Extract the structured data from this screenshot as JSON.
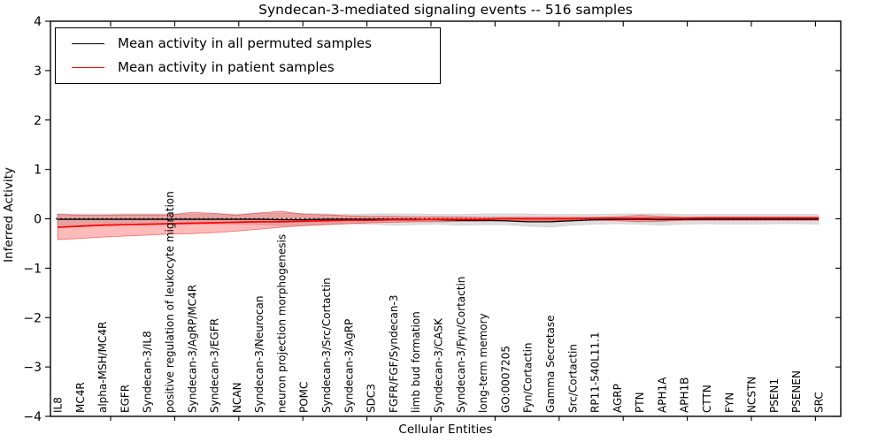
{
  "chart_data": {
    "type": "line",
    "title": "Syndecan-3-mediated signaling events -- 516 samples",
    "xlabel": "Cellular Entities",
    "ylabel": "Inferred Activity",
    "ylim": [
      -4,
      4
    ],
    "grid": false,
    "legend_position": "upper-left",
    "yticks": [
      {
        "v": 4,
        "label": "4"
      },
      {
        "v": 3,
        "label": "3"
      },
      {
        "v": 2,
        "label": "2"
      },
      {
        "v": 1,
        "label": "1"
      },
      {
        "v": 0,
        "label": "0"
      },
      {
        "v": -1,
        "label": "−1"
      },
      {
        "v": -2,
        "label": "−2"
      },
      {
        "v": -3,
        "label": "−3"
      },
      {
        "v": -4,
        "label": "−4"
      }
    ],
    "categories": [
      "IL8",
      "MC4R",
      "alpha-MSH/MC4R",
      "EGFR",
      "Syndecan-3/IL8",
      "positive regulation of leukocyte migration",
      "Syndecan-3/AgRP/MC4R",
      "Syndecan-3/EGFR",
      "NCAN",
      "Syndecan-3/Neurocan",
      "neuron projection morphogenesis",
      "POMC",
      "Syndecan-3/Src/Cortactin",
      "Syndecan-3/AgRP",
      "SDC3",
      "FGFR/FGF/Syndecan-3",
      "limb bud formation",
      "Syndecan-3/CASK",
      "Syndecan-3/Fyn/Cortactin",
      "long-term memory",
      "GO:0007205",
      "Fyn/Cortactin",
      "Gamma Secretase",
      "Src/Cortactin",
      "RP11-540L11.1",
      "AGRP",
      "PTN",
      "APH1A",
      "APH1B",
      "CTTN",
      "FYN",
      "NCSTN",
      "PSEN1",
      "PSENEN",
      "SRC"
    ],
    "series": [
      {
        "name": "Mean activity in all permuted samples",
        "color": "#000000",
        "width": 1.3,
        "values": [
          -0.01,
          -0.01,
          -0.01,
          -0.01,
          -0.01,
          -0.01,
          -0.01,
          -0.01,
          -0.01,
          -0.01,
          -0.02,
          -0.02,
          -0.01,
          -0.01,
          -0.01,
          -0.01,
          -0.01,
          -0.02,
          -0.03,
          -0.03,
          -0.04,
          -0.06,
          -0.06,
          -0.04,
          -0.02,
          -0.01,
          -0.01,
          -0.02,
          -0.01,
          -0.01,
          -0.01,
          -0.01,
          -0.01,
          -0.01,
          -0.01
        ]
      },
      {
        "name": "Mean activity in patient samples",
        "color": "#ff0000",
        "width": 1.7,
        "values": [
          -0.17,
          -0.15,
          -0.13,
          -0.12,
          -0.11,
          -0.1,
          -0.09,
          -0.08,
          -0.07,
          -0.06,
          -0.06,
          -0.05,
          -0.04,
          -0.03,
          -0.03,
          -0.02,
          -0.02,
          -0.01,
          -0.01,
          -0.01,
          0.0,
          0.0,
          0.0,
          0.0,
          0.01,
          0.01,
          0.01,
          0.01,
          0.01,
          0.02,
          0.02,
          0.02,
          0.02,
          0.02,
          0.02
        ]
      }
    ],
    "bands": [
      {
        "name": "permuted-samples-range",
        "fill": "rgba(0,0,0,0.13)",
        "edge": "rgba(0,0,0,0.10)",
        "upper": [
          0.1,
          0.1,
          0.1,
          0.1,
          0.1,
          0.1,
          0.1,
          0.1,
          0.1,
          0.11,
          0.12,
          0.11,
          0.1,
          0.09,
          0.1,
          0.1,
          0.1,
          0.09,
          0.09,
          0.1,
          0.1,
          0.1,
          0.09,
          0.09,
          0.09,
          0.1,
          0.1,
          0.1,
          0.09,
          0.09,
          0.09,
          0.09,
          0.09,
          0.09,
          0.09
        ],
        "lower": [
          -0.13,
          -0.13,
          -0.12,
          -0.12,
          -0.12,
          -0.12,
          -0.11,
          -0.11,
          -0.11,
          -0.12,
          -0.14,
          -0.13,
          -0.11,
          -0.1,
          -0.11,
          -0.13,
          -0.12,
          -0.11,
          -0.13,
          -0.12,
          -0.12,
          -0.15,
          -0.17,
          -0.13,
          -0.11,
          -0.1,
          -0.11,
          -0.13,
          -0.11,
          -0.1,
          -0.11,
          -0.11,
          -0.1,
          -0.1,
          -0.11
        ]
      },
      {
        "name": "patient-samples-range",
        "fill": "rgba(255,0,0,0.27)",
        "edge": "rgba(225,0,0,0.45)",
        "upper": [
          0.09,
          0.07,
          0.07,
          0.08,
          0.08,
          0.08,
          0.13,
          0.11,
          0.07,
          0.12,
          0.15,
          0.09,
          0.08,
          0.06,
          0.05,
          0.05,
          0.04,
          0.04,
          0.04,
          0.03,
          0.03,
          0.03,
          0.03,
          0.03,
          0.03,
          0.04,
          0.07,
          0.05,
          0.03,
          0.03,
          0.03,
          0.03,
          0.03,
          0.03,
          0.03
        ],
        "lower": [
          -0.42,
          -0.4,
          -0.37,
          -0.35,
          -0.33,
          -0.31,
          -0.3,
          -0.28,
          -0.25,
          -0.21,
          -0.17,
          -0.14,
          -0.12,
          -0.1,
          -0.08,
          -0.07,
          -0.06,
          -0.06,
          -0.05,
          -0.05,
          -0.04,
          -0.04,
          -0.04,
          -0.03,
          -0.03,
          -0.04,
          -0.06,
          -0.05,
          -0.03,
          -0.03,
          -0.03,
          -0.03,
          -0.03,
          -0.03,
          -0.03
        ]
      }
    ],
    "baseline": {
      "value": 0,
      "style": "dotted",
      "color": "#000000"
    }
  }
}
